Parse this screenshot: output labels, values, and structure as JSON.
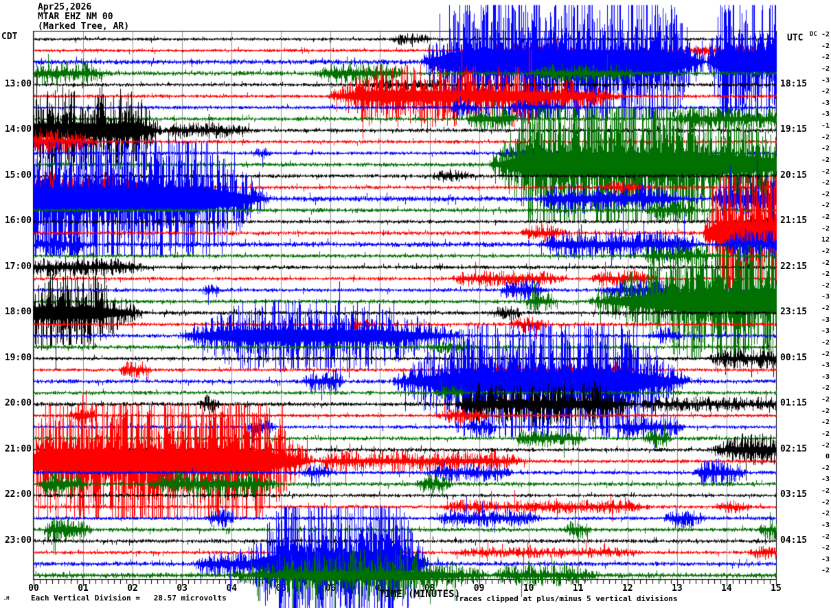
{
  "header": {
    "date": "Apr25,2026",
    "station": "MTAR EHZ NM 00",
    "location": "(Marked Tree, AR)",
    "left_timezone": "CDT",
    "right_timezone": "UTC",
    "dc_column_label": "DC"
  },
  "footer": {
    "corner_glyph": ".M",
    "division_note": "Each Vertical Division =   28.57 microvolts",
    "axis_label": "TIME (MINUTES)",
    "clip_note": "Traces clipped at plus/minus 5 vertical divisions"
  },
  "axis": {
    "x_tick_labels": [
      "00",
      "01",
      "02",
      "03",
      "04",
      "05",
      "06",
      "07",
      "08",
      "09",
      "10",
      "11",
      "12",
      "13",
      "14",
      "15"
    ],
    "x_range_minutes": [
      0,
      15
    ],
    "minor_ticks_per_minute": 8
  },
  "colors": {
    "black": "#000000",
    "red": "#ff0000",
    "blue": "#0000ff",
    "green": "#007000",
    "grid": "#909090",
    "background": "#ffffff"
  },
  "chart_data": {
    "type": "line",
    "subtype": "seismogram-helicorder",
    "title": "MTAR EHZ NM 00 helicorder, Apr25,2026",
    "xlabel": "TIME (MINUTES)",
    "x_range": [
      0,
      15
    ],
    "minutes_per_row": 15,
    "clip_divisions": 5,
    "microvolts_per_division": 28.57,
    "trace_color_cycle": [
      "black",
      "red",
      "blue",
      "green"
    ],
    "rows": [
      {
        "c": "black",
        "left": "",
        "right": "",
        "dc": -2,
        "base": 1.9,
        "events": [
          [
            7.2,
            7.4,
            7.8,
            8.1,
            5
          ]
        ]
      },
      {
        "c": "red",
        "left": "",
        "right": "",
        "dc": -2,
        "base": 1.9,
        "events": [
          [
            9.0,
            9.4,
            10.4,
            11.0,
            7
          ],
          [
            13.2,
            13.5,
            14.3,
            14.7,
            6
          ]
        ]
      },
      {
        "c": "blue",
        "left": "",
        "right": "",
        "dc": -2,
        "base": 2.8,
        "events": [
          [
            7.8,
            8.7,
            12.7,
            13.6,
            80
          ],
          [
            13.6,
            13.9,
            15,
            16,
            70
          ]
        ]
      },
      {
        "c": "green",
        "left": "",
        "right": "",
        "dc": -2,
        "base": 2.6,
        "events": [
          [
            0,
            0.1,
            1.1,
            1.6,
            10
          ],
          [
            5.7,
            6.0,
            7.1,
            7.5,
            10
          ],
          [
            10,
            10.4,
            11.8,
            12.3,
            8
          ]
        ]
      },
      {
        "c": "black",
        "left": "13:00",
        "right": "18:15",
        "dc": -3,
        "base": 2,
        "events": [
          [
            6.8,
            7.0,
            8.0,
            8.4,
            4
          ]
        ]
      },
      {
        "c": "red",
        "left": "",
        "right": "",
        "dc": -2,
        "base": 2,
        "events": [
          [
            5.9,
            6.8,
            9.7,
            12,
            32
          ]
        ]
      },
      {
        "c": "blue",
        "left": "",
        "right": "",
        "dc": -3,
        "base": 2,
        "events": [
          [
            8.4,
            8.5,
            8.8,
            9.0,
            8
          ],
          [
            9.6,
            9.8,
            10.4,
            10.7,
            7
          ]
        ]
      },
      {
        "c": "green",
        "left": "",
        "right": "",
        "dc": -3,
        "base": 2.2,
        "events": [
          [
            8.7,
            8.9,
            9.5,
            9.8,
            13
          ],
          [
            12.9,
            13.3,
            15,
            16,
            11
          ]
        ]
      },
      {
        "c": "black",
        "left": "14:00",
        "right": "19:15",
        "dc": -1,
        "base": 2.2,
        "events": [
          [
            -0.3,
            0,
            2.0,
            2.6,
            45
          ],
          [
            2.6,
            2.8,
            3.8,
            4.5,
            7
          ]
        ]
      },
      {
        "c": "red",
        "left": "",
        "right": "",
        "dc": -2,
        "base": 2,
        "events": [
          [
            -0.3,
            0,
            0.8,
            1.3,
            12
          ]
        ]
      },
      {
        "c": "blue",
        "left": "",
        "right": "",
        "dc": -2,
        "base": 2,
        "events": [
          [
            4.4,
            4.5,
            4.7,
            4.8,
            5
          ],
          [
            9.4,
            9.6,
            10.3,
            10.6,
            6
          ]
        ]
      },
      {
        "c": "green",
        "left": "",
        "right": "",
        "dc": -2,
        "base": 2.4,
        "events": [
          [
            9.2,
            10.2,
            13.2,
            17,
            78
          ]
        ]
      },
      {
        "c": "black",
        "left": "15:00",
        "right": "20:15",
        "dc": -2,
        "base": 2.2,
        "events": [
          [
            8.0,
            8.2,
            8.6,
            8.9,
            5
          ]
        ]
      },
      {
        "c": "red",
        "left": "",
        "right": "",
        "dc": -2,
        "base": 2,
        "events": [
          [
            -0.3,
            0,
            1.5,
            2.4,
            16
          ],
          [
            11.4,
            11.7,
            12.1,
            12.4,
            6
          ]
        ]
      },
      {
        "c": "blue",
        "left": "",
        "right": "",
        "dc": -2,
        "base": 3,
        "events": [
          [
            -1,
            0,
            3.3,
            4.8,
            80
          ],
          [
            10.2,
            10.5,
            12.8,
            13.1,
            14
          ],
          [
            13.7,
            14,
            15,
            16,
            22
          ]
        ]
      },
      {
        "c": "green",
        "left": "",
        "right": "",
        "dc": -2,
        "base": 2.4,
        "events": [
          [
            12.4,
            12.6,
            13.1,
            13.4,
            8
          ]
        ]
      },
      {
        "c": "black",
        "left": "16:00",
        "right": "21:15",
        "dc": -2,
        "base": 2,
        "events": [
          [
            14.2,
            14.5,
            15,
            16,
            6
          ]
        ]
      },
      {
        "c": "red",
        "left": "",
        "right": "",
        "dc": -2,
        "base": 2.2,
        "events": [
          [
            9.8,
            10.1,
            10.5,
            10.8,
            8
          ],
          [
            13.5,
            13.9,
            15,
            16,
            78
          ]
        ]
      },
      {
        "c": "blue",
        "left": "",
        "right": "",
        "dc": 12,
        "base": 3,
        "events": [
          [
            0,
            0.1,
            0.8,
            1.2,
            9
          ],
          [
            10.2,
            10.6,
            13.1,
            13.5,
            14
          ],
          [
            13.9,
            14.2,
            15,
            16,
            16
          ]
        ]
      },
      {
        "c": "green",
        "left": "",
        "right": "",
        "dc": -2,
        "base": 2.2,
        "events": [
          [
            12.2,
            12.5,
            13.4,
            13.8,
            8
          ]
        ]
      },
      {
        "c": "black",
        "left": "17:00",
        "right": "22:15",
        "dc": -2,
        "base": 2.2,
        "events": [
          [
            -0.3,
            0,
            1.6,
            2.4,
            9
          ]
        ]
      },
      {
        "c": "red",
        "left": "",
        "right": "",
        "dc": -2,
        "base": 2,
        "events": [
          [
            8.4,
            8.7,
            10.3,
            10.8,
            7
          ],
          [
            11.2,
            11.5,
            12.2,
            12.6,
            8
          ]
        ]
      },
      {
        "c": "blue",
        "left": "",
        "right": "",
        "dc": -2,
        "base": 2.2,
        "events": [
          [
            3.4,
            3.5,
            3.7,
            3.8,
            6
          ],
          [
            9.4,
            9.6,
            10.1,
            10.4,
            10
          ],
          [
            11.4,
            11.8,
            12.7,
            13.0,
            9
          ]
        ]
      },
      {
        "c": "green",
        "left": "",
        "right": "",
        "dc": -3,
        "base": 2.3,
        "events": [
          [
            9.9,
            10.1,
            10.4,
            10.6,
            10
          ],
          [
            11.2,
            13.3,
            15,
            16,
            72
          ]
        ]
      },
      {
        "c": "black",
        "left": "18:00",
        "right": "23:15",
        "dc": -2,
        "base": 2.2,
        "events": [
          [
            -0.3,
            0,
            1.2,
            2.2,
            40
          ],
          [
            9.2,
            9.4,
            9.7,
            9.9,
            6
          ]
        ]
      },
      {
        "c": "red",
        "left": "",
        "right": "",
        "dc": -3,
        "base": 2,
        "events": [
          [
            6.4,
            6.5,
            6.8,
            6.9,
            5
          ],
          [
            9.6,
            9.8,
            10.2,
            10.4,
            7
          ]
        ]
      },
      {
        "c": "blue",
        "left": "",
        "right": "",
        "dc": -3,
        "base": 2.2,
        "events": [
          [
            2.9,
            4.1,
            6.9,
            8.7,
            38
          ],
          [
            12.4,
            12.6,
            12.9,
            13.1,
            7
          ]
        ]
      },
      {
        "c": "green",
        "left": "",
        "right": "",
        "dc": -2,
        "base": 2.2,
        "events": [
          [
            7.9,
            8.1,
            8.5,
            8.8,
            5
          ]
        ]
      },
      {
        "c": "black",
        "left": "19:00",
        "right": "00:15",
        "dc": -2,
        "base": 2,
        "events": [
          [
            13.6,
            13.9,
            15,
            16,
            9
          ]
        ]
      },
      {
        "c": "red",
        "left": "",
        "right": "",
        "dc": -3,
        "base": 2,
        "events": [
          [
            1.7,
            1.85,
            2.2,
            2.4,
            8
          ],
          [
            8.4,
            8.8,
            11.8,
            12.2,
            5
          ]
        ]
      },
      {
        "c": "blue",
        "left": "",
        "right": "",
        "dc": -3,
        "base": 2.3,
        "events": [
          [
            5.4,
            5.6,
            6.1,
            6.3,
            10
          ],
          [
            7.2,
            8.9,
            11.9,
            13.3,
            68
          ]
        ]
      },
      {
        "c": "green",
        "left": "",
        "right": "",
        "dc": -2,
        "base": 2.2,
        "events": [
          [
            8.1,
            8.25,
            8.5,
            8.7,
            6
          ]
        ]
      },
      {
        "c": "black",
        "left": "20:00",
        "right": "01:15",
        "dc": -2,
        "base": 2.4,
        "events": [
          [
            3.3,
            3.45,
            3.6,
            3.8,
            8
          ],
          [
            8.5,
            9.0,
            11.4,
            12.2,
            22
          ],
          [
            12.2,
            12.5,
            15,
            16,
            6
          ]
        ]
      },
      {
        "c": "red",
        "left": "",
        "right": "",
        "dc": -2,
        "base": 2,
        "events": [
          [
            0.7,
            0.85,
            1.15,
            1.3,
            10
          ],
          [
            8.1,
            8.4,
            8.9,
            9.2,
            7
          ]
        ]
      },
      {
        "c": "blue",
        "left": "",
        "right": "",
        "dc": -2,
        "base": 2,
        "events": [
          [
            4.3,
            4.45,
            4.75,
            4.9,
            8
          ],
          [
            8.7,
            8.9,
            9.2,
            9.4,
            7
          ],
          [
            11.7,
            12.0,
            12.9,
            13.2,
            10
          ]
        ]
      },
      {
        "c": "green",
        "left": "",
        "right": "",
        "dc": -2,
        "base": 2.2,
        "events": [
          [
            9.7,
            9.9,
            10.9,
            11.2,
            8
          ],
          [
            12.3,
            12.45,
            12.75,
            12.9,
            9
          ]
        ]
      },
      {
        "c": "black",
        "left": "21:00",
        "right": "02:15",
        "dc": -2,
        "base": 2.2,
        "events": [
          [
            13.6,
            14.2,
            15,
            16,
            16
          ]
        ]
      },
      {
        "c": "red",
        "left": "",
        "right": "",
        "dc": 0,
        "base": 2.2,
        "events": [
          [
            -0.5,
            0.3,
            4.4,
            5.7,
            78
          ],
          [
            5.7,
            6,
            9.4,
            10,
            10
          ]
        ]
      },
      {
        "c": "blue",
        "left": "",
        "right": "",
        "dc": -2,
        "base": 2.2,
        "events": [
          [
            5.4,
            5.55,
            5.9,
            6.1,
            8
          ],
          [
            7.9,
            8.2,
            9.4,
            9.7,
            8
          ],
          [
            13.3,
            13.5,
            14.1,
            14.4,
            13
          ]
        ]
      },
      {
        "c": "green",
        "left": "",
        "right": "",
        "dc": -3,
        "base": 2.3,
        "events": [
          [
            0.1,
            0.3,
            0.8,
            1.1,
            13
          ],
          [
            2.3,
            2.7,
            4.5,
            5.0,
            13
          ],
          [
            7.7,
            7.9,
            8.2,
            8.5,
            8
          ]
        ]
      },
      {
        "c": "black",
        "left": "22:00",
        "right": "03:15",
        "dc": -2,
        "base": 2,
        "events": []
      },
      {
        "c": "red",
        "left": "",
        "right": "",
        "dc": -2,
        "base": 2,
        "events": [
          [
            8.2,
            8.6,
            12.0,
            12.5,
            6
          ],
          [
            13.7,
            13.9,
            14.2,
            14.5,
            6
          ]
        ]
      },
      {
        "c": "blue",
        "left": "",
        "right": "",
        "dc": -2,
        "base": 2.2,
        "events": [
          [
            3.5,
            3.6,
            3.9,
            4.1,
            8
          ],
          [
            8.1,
            8.4,
            9.9,
            10.3,
            8
          ],
          [
            12.7,
            12.9,
            13.3,
            13.6,
            9
          ]
        ]
      },
      {
        "c": "green",
        "left": "",
        "right": "",
        "dc": -3,
        "base": 2.3,
        "events": [
          [
            0.2,
            0.4,
            0.9,
            1.2,
            13
          ],
          [
            10.7,
            10.85,
            11.1,
            11.3,
            8
          ],
          [
            14.6,
            14.8,
            15,
            16,
            9
          ]
        ]
      },
      {
        "c": "black",
        "left": "23:00",
        "right": "04:15",
        "dc": -2,
        "base": 2.2,
        "events": []
      },
      {
        "c": "red",
        "left": "",
        "right": "",
        "dc": -2,
        "base": 2,
        "events": [
          [
            8.4,
            8.8,
            11.8,
            12.3,
            4
          ],
          [
            14.4,
            14.6,
            15,
            16,
            6
          ]
        ]
      },
      {
        "c": "blue",
        "left": "",
        "right": "",
        "dc": -3,
        "base": 2.5,
        "events": [
          [
            3.2,
            3.5,
            4.2,
            4.4,
            14
          ],
          [
            4.2,
            5.1,
            7.3,
            8,
            82
          ]
        ]
      },
      {
        "c": "green",
        "left": "",
        "right": "",
        "dc": -2,
        "base": 3,
        "events": [
          [
            3.9,
            5.6,
            7.6,
            9.3,
            26
          ],
          [
            9.3,
            9.5,
            10.9,
            11.5,
            9
          ]
        ]
      }
    ]
  }
}
